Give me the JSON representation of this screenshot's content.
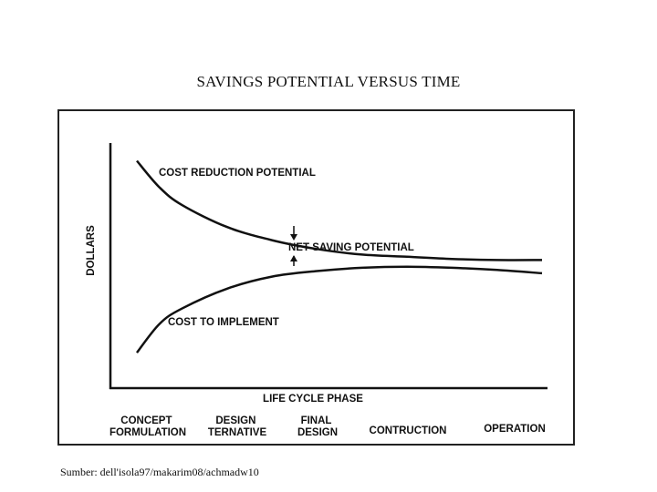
{
  "slide": {
    "title": "SAVINGS POTENTIAL VERSUS TIME",
    "source": "Sumber: dell'isola97/makarim08/achmadw10"
  },
  "chart_data": {
    "type": "line",
    "ylabel": "DOLLARS",
    "xlabel": "LIFE CYCLE PHASE",
    "categories": [
      [
        "CONCEPT",
        "FORMULATION"
      ],
      [
        "DESIGN",
        "TERNATIVE"
      ],
      [
        "FINAL",
        "DESIGN"
      ],
      [
        "CONTRUCTION"
      ],
      [
        "OPERATION"
      ]
    ],
    "series": [
      {
        "name": "COST REDUCTION POTENTIAL",
        "x": [
          0,
          0.25,
          0.5,
          1,
          1.5,
          2,
          2.5,
          3,
          3.5,
          4,
          4.5
        ],
        "y": [
          0.94,
          0.82,
          0.74,
          0.64,
          0.58,
          0.54,
          0.515,
          0.505,
          0.495,
          0.49,
          0.49
        ]
      },
      {
        "name": "COST TO IMPLEMENT",
        "x": [
          0,
          0.25,
          0.5,
          1,
          1.5,
          2,
          2.5,
          3,
          3.5,
          4,
          4.5
        ],
        "y": [
          0.07,
          0.2,
          0.27,
          0.36,
          0.415,
          0.44,
          0.455,
          0.46,
          0.455,
          0.445,
          0.43
        ]
      }
    ],
    "annotations": [
      "NET SAVING POTENTIAL"
    ],
    "xlim": [
      0,
      4.5
    ],
    "ylim": [
      0,
      1
    ],
    "grid": false,
    "legend": "none"
  }
}
